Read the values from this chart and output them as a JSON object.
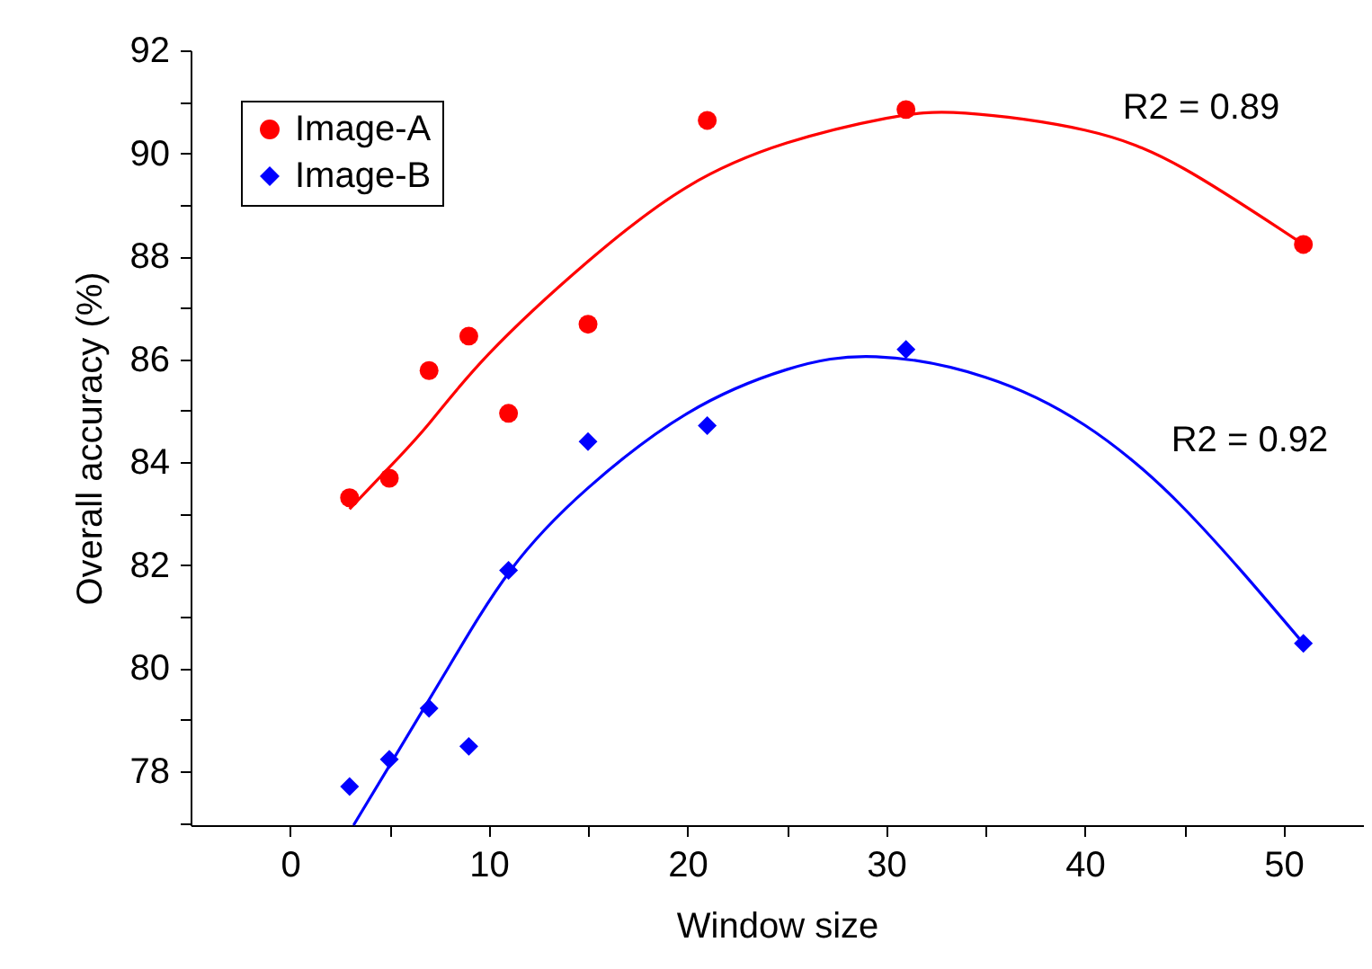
{
  "chart_data": {
    "type": "scatter",
    "xlabel": "Window size",
    "ylabel": "Overall accuracy (%)",
    "xlim": [
      -5,
      54
    ],
    "ylim": [
      76.95,
      92
    ],
    "xticks": [
      0,
      {
        "value": 5,
        "label": null
      },
      10,
      {
        "value": 15,
        "label": null
      },
      20,
      {
        "value": 25,
        "label": null
      },
      30,
      {
        "value": 35,
        "label": null
      },
      40,
      {
        "value": 45,
        "label": null
      },
      50
    ],
    "yticks": [
      {
        "value": 77,
        "label": null
      },
      78,
      {
        "value": 79,
        "label": null
      },
      80,
      {
        "value": 81,
        "label": null
      },
      82,
      {
        "value": 83,
        "label": null
      },
      84,
      {
        "value": 85,
        "label": null
      },
      86,
      {
        "value": 87,
        "label": null
      },
      88,
      {
        "value": 89,
        "label": null
      },
      90,
      {
        "value": 91,
        "label": null
      },
      92
    ],
    "grid": false,
    "legend": "top left",
    "series": [
      {
        "name": "Image-A",
        "type": "scatter",
        "marker": "circle",
        "color": "#ff0000",
        "x": [
          3,
          5,
          7,
          9,
          11,
          15,
          21,
          31,
          51
        ],
        "values": [
          83.31,
          83.69,
          85.78,
          86.45,
          84.95,
          86.68,
          90.64,
          90.85,
          88.23
        ]
      },
      {
        "name": "Image-B",
        "type": "scatter",
        "marker": "diamond",
        "color": "#0000ff",
        "x": [
          3,
          5,
          7,
          9,
          11,
          15,
          21,
          31,
          51
        ],
        "values": [
          77.7,
          78.23,
          79.22,
          78.48,
          81.9,
          84.4,
          84.71,
          86.19,
          80.48
        ]
      },
      {
        "type": "line",
        "marker": "none",
        "color": "#ff0000",
        "x": [
          3,
          5,
          7,
          10,
          15,
          20,
          25,
          30,
          34,
          40,
          45,
          51
        ],
        "values": [
          83.09,
          83.9,
          84.75,
          86.1,
          87.9,
          89.35,
          90.2,
          90.68,
          90.78,
          90.45,
          89.7,
          88.23
        ]
      },
      {
        "type": "line",
        "marker": "none",
        "color": "#0000ff",
        "x": [
          3.2,
          5,
          7.8,
          11.1,
          15,
          20,
          25,
          29.5,
          35,
          40,
          45,
          51
        ],
        "values": [
          76.95,
          78.1,
          79.9,
          81.9,
          83.5,
          84.95,
          85.8,
          86.05,
          85.65,
          84.72,
          83.1,
          80.48
        ]
      }
    ],
    "annotations": [
      "R2 = 0.89",
      "R2 = 0.92"
    ]
  }
}
